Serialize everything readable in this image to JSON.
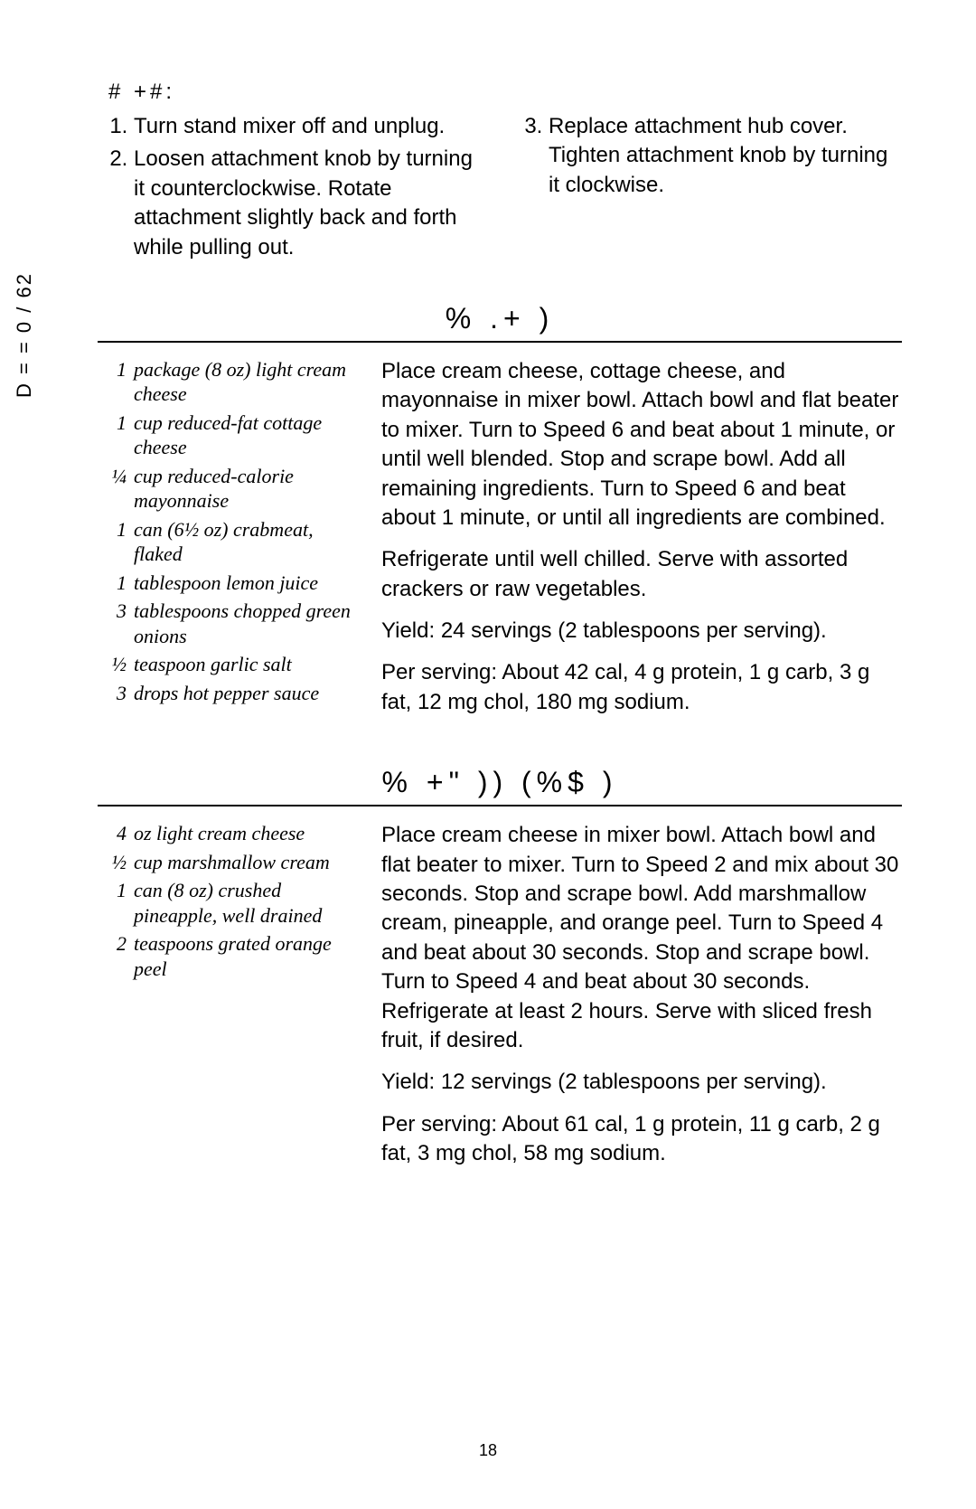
{
  "page": {
    "side_label": "D = = 0 / 62",
    "number": "18"
  },
  "top": {
    "heading": "# +#:",
    "left_steps": [
      "Turn stand mixer off and unplug.",
      "Loosen attachment knob by turning it counterclockwise. Rotate attachment slightly back and forth while pulling out."
    ],
    "right_steps": [
      "Replace attachment hub cover. Tighten attachment knob by turning it clockwise."
    ]
  },
  "recipe1": {
    "title": "% .+    )",
    "ingredients": [
      {
        "qty": "1",
        "item": "package (8 oz) light cream cheese"
      },
      {
        "qty": "1",
        "item": "cup reduced-fat cottage cheese"
      },
      {
        "qty": "¼",
        "item": "cup reduced-calorie mayonnaise"
      },
      {
        "qty": "1",
        "item": "can (6½ oz) crabmeat, flaked"
      },
      {
        "qty": "1",
        "item": "tablespoon lemon juice"
      },
      {
        "qty": "3",
        "item": "tablespoons chopped green onions"
      },
      {
        "qty": "½",
        "item": "teaspoon garlic salt"
      },
      {
        "qty": "3",
        "item": "drops hot pepper sauce"
      }
    ],
    "instructions": [
      "Place cream cheese, cottage cheese, and mayonnaise in mixer bowl. Attach bowl and flat beater to mixer. Turn to Speed 6 and beat about 1 minute, or until well blended. Stop and scrape bowl. Add all remaining ingredients. Turn to Speed 6 and beat about 1 minute, or until all ingredients are combined.",
      "Refrigerate until well chilled. Serve with assorted crackers or raw vegetables.",
      "Yield: 24 servings (2 tablespoons per serving).",
      "Per serving: About 42 cal, 4 g protein, 1 g carb, 3 g fat, 12 mg chol, 180 mg sodium."
    ]
  },
  "recipe2": {
    "title": "% +\"   ))  (%$   )",
    "ingredients": [
      {
        "qty": "4",
        "item": "oz light cream cheese"
      },
      {
        "qty": "½",
        "item": "cup marshmallow cream"
      },
      {
        "qty": "1",
        "item": "can (8 oz) crushed pineapple, well drained"
      },
      {
        "qty": "2",
        "item": "teaspoons grated orange peel"
      }
    ],
    "instructions": [
      "Place cream cheese in mixer bowl. Attach bowl and flat beater to mixer. Turn to Speed 2 and mix about 30 seconds. Stop and scrape bowl. Add marshmallow cream, pineapple, and orange peel. Turn to Speed 4 and beat about 30 seconds. Stop and scrape bowl. Turn to Speed 4 and beat about 30 seconds. Refrigerate at least 2 hours. Serve with sliced fresh fruit, if desired.",
      "Yield: 12 servings (2 tablespoons per serving).",
      "Per serving: About 61 cal, 1 g protein, 11 g carb, 2 g fat, 3 mg chol, 58 mg sodium."
    ]
  }
}
